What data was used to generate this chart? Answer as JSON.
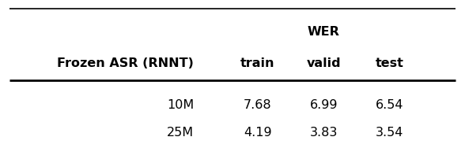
{
  "title_top": "WER",
  "col_header_left": "Frozen ASR (RNNT)",
  "col_headers": [
    "train",
    "valid",
    "test"
  ],
  "rows": [
    {
      "label": "10M",
      "values": [
        "7.68",
        "6.99",
        "6.54"
      ]
    },
    {
      "label": "25M",
      "values": [
        "4.19",
        "3.83",
        "3.54"
      ]
    }
  ],
  "background_color": "#ffffff",
  "text_color": "#000000",
  "header_fontsize": 11.5,
  "data_fontsize": 11.5,
  "fig_width": 5.88,
  "fig_height": 1.88,
  "dpi": 100
}
